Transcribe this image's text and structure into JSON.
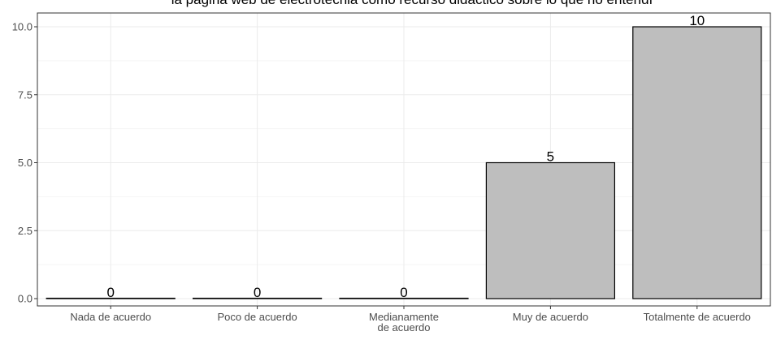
{
  "chart_data": {
    "type": "bar",
    "title": "la página web de electrotecnia como recurso didáctico sobre lo que no entendí",
    "categories": [
      [
        "Nada de acuerdo"
      ],
      [
        "Poco de acuerdo"
      ],
      [
        "Medianamente",
        "de acuerdo"
      ],
      [
        "Muy de acuerdo"
      ],
      [
        "Totalmente de acuerdo"
      ]
    ],
    "values": [
      0,
      0,
      0,
      5,
      10
    ],
    "data_labels": [
      "0",
      "0",
      "0",
      "5",
      "10"
    ],
    "ylim": [
      0,
      10.0
    ],
    "yticks": [
      0.0,
      2.5,
      5.0,
      7.5,
      10.0
    ],
    "ytick_labels": [
      "0.0",
      "2.5",
      "5.0",
      "7.5",
      "10.0"
    ],
    "xlabel": "",
    "ylabel": "",
    "grid": true,
    "colors": {
      "bar_fill": "#bebebe",
      "bar_stroke": "#000000",
      "grid_major": "#ebebeb",
      "grid_minor": "#f5f5f5",
      "panel_border": "#333333",
      "tick_text": "#4d4d4d"
    }
  }
}
